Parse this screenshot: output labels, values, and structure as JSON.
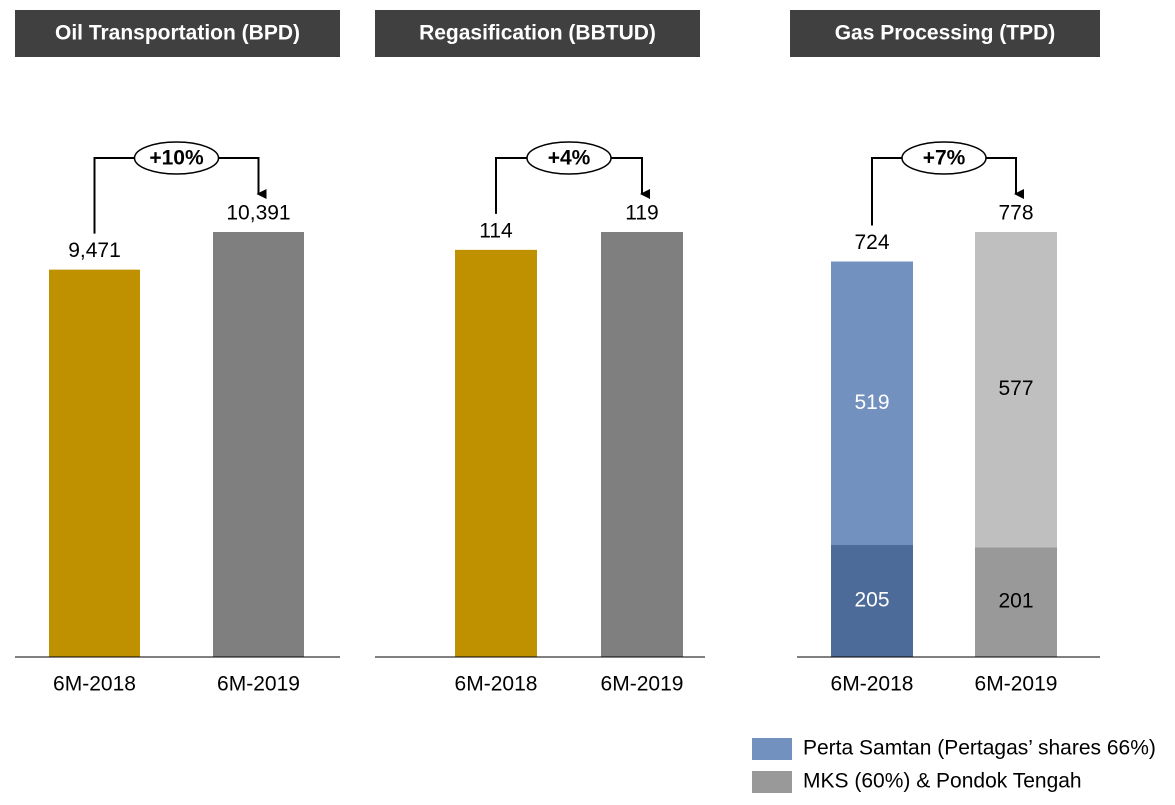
{
  "chart_data": [
    {
      "type": "bar",
      "title": "Oil Transportation (BPD)",
      "categories": [
        "6M-2018",
        "6M-2019"
      ],
      "values": [
        9471,
        10391
      ],
      "value_labels": [
        "9,471",
        "10,391"
      ],
      "colors": [
        "#bf9000",
        "#7f7f7f"
      ],
      "change_label": "+10%"
    },
    {
      "type": "bar",
      "title": "Regasification (BBTUD)",
      "categories": [
        "6M-2018",
        "6M-2019"
      ],
      "values": [
        114,
        119
      ],
      "colors": [
        "#bf9000",
        "#7f7f7f"
      ],
      "change_label": "+4%"
    },
    {
      "type": "stacked_bar",
      "title": "Gas Processing (TPD)",
      "categories": [
        "6M-2018",
        "6M-2019"
      ],
      "totals": [
        724,
        778
      ],
      "series": [
        {
          "values": [
            205,
            201
          ],
          "colors": [
            "#4d6b99",
            "#999999"
          ],
          "label_colors": [
            "#ffffff",
            "#000000"
          ]
        },
        {
          "values": [
            519,
            577
          ],
          "colors": [
            "#7291bf",
            "#bfbfbf"
          ],
          "label_colors": [
            "#ffffff",
            "#000000"
          ]
        }
      ],
      "legend": [
        {
          "name": "Perta Samtan (Pertagas’ shares 66%)",
          "color": "#7291bf"
        },
        {
          "name": "MKS (60%) & Pondok Tengah",
          "color": "#999999"
        }
      ],
      "change_label": "+7%"
    }
  ]
}
